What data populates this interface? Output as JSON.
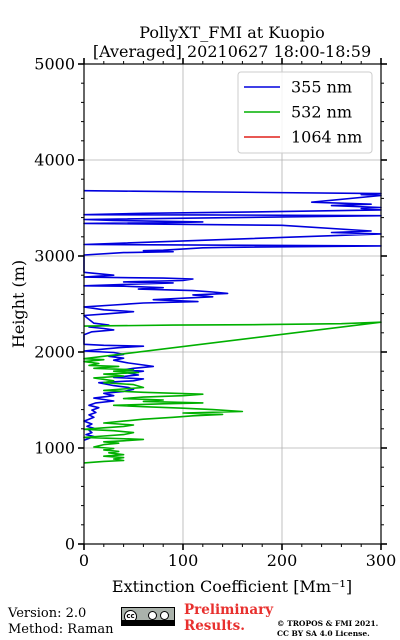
{
  "chart_data": {
    "type": "line",
    "title_line1": "PollyXT_FMI at Kuopio",
    "title_line2": "[Averaged] 20210627 18:00-18:59",
    "xlabel": "Extinction Coefficient [Mm⁻¹]",
    "ylabel": "Height (m)",
    "xlim": [
      0,
      300
    ],
    "ylim": [
      0,
      5000
    ],
    "xticks": [
      0,
      100,
      200,
      300
    ],
    "yticks": [
      0,
      1000,
      2000,
      3000,
      4000,
      5000
    ],
    "grid": true,
    "legend_position": "top-right",
    "series": [
      {
        "name": "355 nm",
        "color": "#0000dd",
        "points": [
          [
            0,
            3680
          ],
          [
            50,
            3675
          ],
          [
            300,
            3650
          ],
          [
            280,
            3640
          ],
          [
            300,
            3630
          ],
          [
            230,
            3560
          ],
          [
            260,
            3550
          ],
          [
            290,
            3540
          ],
          [
            250,
            3525
          ],
          [
            300,
            3505
          ],
          [
            280,
            3495
          ],
          [
            300,
            3480
          ],
          [
            180,
            3460
          ],
          [
            60,
            3445
          ],
          [
            0,
            3430
          ],
          [
            120,
            3428
          ],
          [
            300,
            3420
          ],
          [
            0,
            3380
          ],
          [
            30,
            3370
          ],
          [
            120,
            3355
          ],
          [
            70,
            3345
          ],
          [
            0,
            3340
          ],
          [
            200,
            3320
          ],
          [
            290,
            3260
          ],
          [
            250,
            3245
          ],
          [
            300,
            3230
          ],
          [
            0,
            3120
          ],
          [
            300,
            3105
          ],
          [
            140,
            3090
          ],
          [
            120,
            3085
          ],
          [
            80,
            3060
          ],
          [
            60,
            3055
          ],
          [
            90,
            3045
          ],
          [
            40,
            3035
          ],
          [
            0,
            3010
          ],
          [
            0,
            2830
          ],
          [
            30,
            2800
          ],
          [
            0,
            2780
          ],
          [
            80,
            2770
          ],
          [
            110,
            2760
          ],
          [
            100,
            2745
          ],
          [
            40,
            2730
          ],
          [
            90,
            2720
          ],
          [
            30,
            2700
          ],
          [
            0,
            2690
          ],
          [
            40,
            2685
          ],
          [
            80,
            2670
          ],
          [
            55,
            2655
          ],
          [
            110,
            2640
          ],
          [
            130,
            2625
          ],
          [
            145,
            2610
          ],
          [
            110,
            2595
          ],
          [
            130,
            2575
          ],
          [
            100,
            2560
          ],
          [
            70,
            2545
          ],
          [
            115,
            2525
          ],
          [
            60,
            2510
          ],
          [
            30,
            2490
          ],
          [
            0,
            2470
          ],
          [
            20,
            2440
          ],
          [
            50,
            2420
          ],
          [
            20,
            2395
          ],
          [
            0,
            2380
          ],
          [
            10,
            2300
          ],
          [
            25,
            2280
          ],
          [
            5,
            2260
          ],
          [
            20,
            2245
          ],
          [
            30,
            2230
          ],
          [
            8,
            2210
          ],
          [
            0,
            2180
          ],
          [
            0,
            2080
          ],
          [
            20,
            2070
          ],
          [
            60,
            2060
          ],
          [
            35,
            2045
          ],
          [
            20,
            2030
          ],
          [
            0,
            2010
          ],
          [
            30,
            1995
          ],
          [
            40,
            1975
          ],
          [
            25,
            1955
          ],
          [
            40,
            1935
          ],
          [
            30,
            1915
          ],
          [
            45,
            1885
          ],
          [
            60,
            1865
          ],
          [
            70,
            1850
          ],
          [
            50,
            1830
          ],
          [
            40,
            1815
          ],
          [
            60,
            1800
          ],
          [
            45,
            1780
          ],
          [
            55,
            1760
          ],
          [
            30,
            1735
          ],
          [
            60,
            1720
          ],
          [
            50,
            1700
          ],
          [
            15,
            1680
          ],
          [
            30,
            1650
          ],
          [
            45,
            1630
          ],
          [
            50,
            1610
          ],
          [
            40,
            1590
          ],
          [
            20,
            1570
          ],
          [
            30,
            1545
          ],
          [
            10,
            1520
          ],
          [
            20,
            1505
          ],
          [
            30,
            1490
          ],
          [
            12,
            1470
          ],
          [
            5,
            1445
          ],
          [
            15,
            1420
          ],
          [
            8,
            1395
          ],
          [
            12,
            1370
          ],
          [
            5,
            1345
          ],
          [
            10,
            1320
          ],
          [
            5,
            1300
          ],
          [
            0,
            1280
          ],
          [
            8,
            1250
          ],
          [
            3,
            1225
          ],
          [
            10,
            1205
          ],
          [
            5,
            1185
          ],
          [
            8,
            1160
          ],
          [
            2,
            1140
          ],
          [
            10,
            1120
          ],
          [
            5,
            1100
          ],
          [
            0,
            1080
          ]
        ]
      },
      {
        "name": "532 nm",
        "color": "#00b000",
        "points": [
          [
            0,
            2270
          ],
          [
            90,
            2280
          ],
          [
            180,
            2285
          ],
          [
            260,
            2295
          ],
          [
            300,
            2310
          ],
          [
            0,
            1930
          ],
          [
            20,
            1920
          ],
          [
            0,
            1900
          ],
          [
            15,
            1880
          ],
          [
            5,
            1860
          ],
          [
            35,
            1850
          ],
          [
            10,
            1830
          ],
          [
            50,
            1815
          ],
          [
            30,
            1800
          ],
          [
            55,
            1785
          ],
          [
            20,
            1770
          ],
          [
            40,
            1750
          ],
          [
            10,
            1730
          ],
          [
            30,
            1700
          ],
          [
            20,
            1680
          ],
          [
            50,
            1660
          ],
          [
            60,
            1630
          ],
          [
            20,
            1600
          ],
          [
            60,
            1580
          ],
          [
            120,
            1560
          ],
          [
            100,
            1545
          ],
          [
            60,
            1530
          ],
          [
            40,
            1515
          ],
          [
            80,
            1500
          ],
          [
            60,
            1485
          ],
          [
            120,
            1470
          ],
          [
            80,
            1460
          ],
          [
            30,
            1445
          ],
          [
            60,
            1430
          ],
          [
            100,
            1415
          ],
          [
            130,
            1400
          ],
          [
            160,
            1380
          ],
          [
            100,
            1365
          ],
          [
            140,
            1350
          ],
          [
            110,
            1335
          ],
          [
            90,
            1320
          ],
          [
            60,
            1300
          ],
          [
            40,
            1280
          ],
          [
            20,
            1260
          ],
          [
            50,
            1240
          ],
          [
            40,
            1225
          ],
          [
            20,
            1210
          ],
          [
            0,
            1195
          ],
          [
            30,
            1180
          ],
          [
            50,
            1160
          ],
          [
            40,
            1140
          ],
          [
            20,
            1125
          ],
          [
            0,
            1110
          ],
          [
            30,
            1100
          ],
          [
            60,
            1090
          ],
          [
            40,
            1075
          ],
          [
            20,
            1065
          ],
          [
            35,
            1050
          ],
          [
            20,
            1035
          ],
          [
            10,
            1010
          ],
          [
            30,
            995
          ],
          [
            20,
            980
          ],
          [
            35,
            965
          ],
          [
            25,
            950
          ],
          [
            40,
            930
          ],
          [
            20,
            915
          ],
          [
            40,
            900
          ],
          [
            30,
            885
          ],
          [
            40,
            870
          ],
          [
            20,
            860
          ],
          [
            0,
            845
          ]
        ]
      },
      {
        "name": "1064 nm",
        "color": "#e0201a",
        "points": []
      }
    ]
  },
  "footer": {
    "version": "Version: 2.0",
    "method": "Method: Raman",
    "preliminary_line1": "Preliminary",
    "preliminary_line2": "Results.",
    "copyright_line1": "© TROPOS & FMI 2021.",
    "copyright_line2": "CC BY SA 4.0 License.",
    "badge_icon": "cc-by-sa-icon",
    "badge_text": "cc"
  }
}
